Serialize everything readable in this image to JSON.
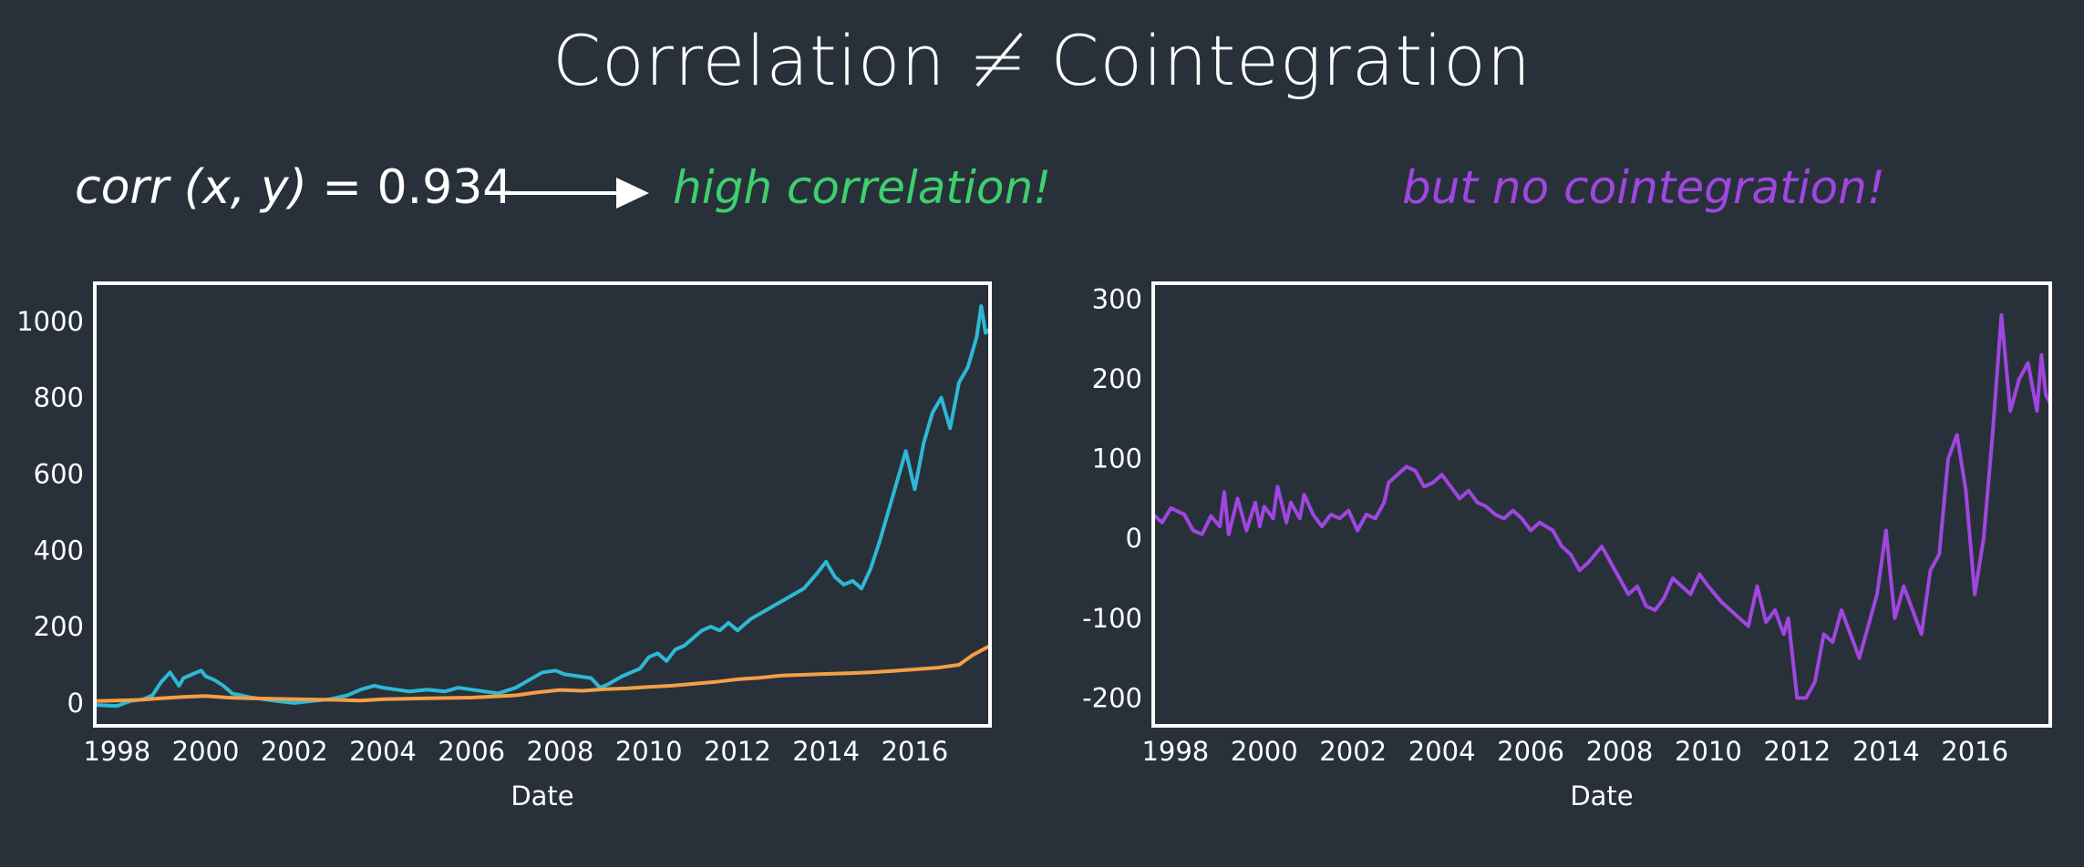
{
  "title": "Correlation ≠ Cointegration",
  "formula": {
    "lhs_func": "corr",
    "lhs_args": "(x, y)",
    "equals_value": "= 0.934"
  },
  "left_caption": "high correlation!",
  "right_caption": "but no cointegration!",
  "colors": {
    "background": "#28313a",
    "green": "#3ecf6e",
    "purple": "#a046e0",
    "cyan": "#2fb8d6",
    "orange": "#f2a046",
    "frame": "#ffffff"
  },
  "chart_data": [
    {
      "type": "line",
      "title": "",
      "xlabel": "Date",
      "ylabel": "",
      "xlim": [
        1997.5,
        2017.7
      ],
      "ylim": [
        -60,
        1100
      ],
      "x_ticks": [
        1998,
        2000,
        2002,
        2004,
        2006,
        2008,
        2010,
        2012,
        2014,
        2016
      ],
      "x_tick_labels": [
        "1998",
        "2000",
        "2002",
        "2004",
        "2006",
        "2008",
        "2010",
        "2012",
        "2014",
        "2016"
      ],
      "y_ticks": [
        0,
        200,
        400,
        600,
        800,
        1000
      ],
      "y_tick_labels": [
        "0",
        "200",
        "400",
        "600",
        "800",
        "1000"
      ],
      "grid": false,
      "series": [
        {
          "color": "#2fb8d6",
          "x": [
            1997.5,
            1998.0,
            1998.3,
            1998.6,
            1998.8,
            1999.0,
            1999.2,
            1999.4,
            1999.5,
            1999.7,
            1999.9,
            2000.0,
            2000.2,
            2000.4,
            2000.6,
            2000.8,
            2001.0,
            2001.3,
            2001.6,
            2002.0,
            2002.4,
            2002.8,
            2003.2,
            2003.5,
            2003.8,
            2004.0,
            2004.3,
            2004.6,
            2005.0,
            2005.4,
            2005.7,
            2006.0,
            2006.3,
            2006.6,
            2007.0,
            2007.3,
            2007.6,
            2007.9,
            2008.1,
            2008.4,
            2008.7,
            2008.9,
            2009.1,
            2009.4,
            2009.8,
            2010.0,
            2010.2,
            2010.4,
            2010.6,
            2010.8,
            2011.0,
            2011.2,
            2011.4,
            2011.6,
            2011.8,
            2012.0,
            2012.3,
            2012.6,
            2012.9,
            2013.2,
            2013.5,
            2013.8,
            2014.0,
            2014.2,
            2014.4,
            2014.6,
            2014.8,
            2015.0,
            2015.2,
            2015.4,
            2015.6,
            2015.8,
            2016.0,
            2016.2,
            2016.4,
            2016.6,
            2016.8,
            2017.0,
            2017.2,
            2017.4,
            2017.5,
            2017.6,
            2017.7
          ],
          "y": [
            -5,
            -8,
            5,
            10,
            20,
            55,
            80,
            45,
            65,
            75,
            85,
            70,
            60,
            45,
            25,
            20,
            15,
            10,
            5,
            0,
            5,
            10,
            20,
            35,
            45,
            40,
            35,
            30,
            35,
            30,
            40,
            35,
            30,
            25,
            40,
            60,
            80,
            85,
            75,
            70,
            65,
            40,
            50,
            70,
            90,
            120,
            130,
            110,
            140,
            150,
            170,
            190,
            200,
            190,
            210,
            190,
            220,
            240,
            260,
            280,
            300,
            340,
            370,
            330,
            310,
            320,
            300,
            350,
            420,
            500,
            580,
            660,
            560,
            680,
            760,
            800,
            720,
            840,
            880,
            960,
            1040,
            970,
            980
          ]
        },
        {
          "color": "#f2a046",
          "x": [
            1997.5,
            1998.0,
            1998.5,
            1999.0,
            1999.5,
            2000.0,
            2000.5,
            2001.0,
            2002.0,
            2003.0,
            2003.5,
            2004.0,
            2005.0,
            2006.0,
            2007.0,
            2007.5,
            2008.0,
            2008.5,
            2009.0,
            2009.5,
            2010.0,
            2010.5,
            2011.0,
            2011.5,
            2012.0,
            2012.5,
            2013.0,
            2013.5,
            2014.0,
            2014.5,
            2015.0,
            2015.5,
            2016.0,
            2016.5,
            2017.0,
            2017.3,
            2017.7
          ],
          "y": [
            5,
            6,
            8,
            12,
            16,
            18,
            14,
            12,
            10,
            8,
            6,
            10,
            12,
            14,
            20,
            28,
            34,
            32,
            36,
            38,
            42,
            45,
            50,
            55,
            62,
            66,
            72,
            74,
            76,
            78,
            80,
            84,
            88,
            92,
            100,
            125,
            150
          ]
        }
      ]
    },
    {
      "type": "line",
      "title": "",
      "xlabel": "Date",
      "ylabel": "",
      "xlim": [
        1997.5,
        2017.7
      ],
      "ylim": [
        -235,
        320
      ],
      "x_ticks": [
        1998,
        2000,
        2002,
        2004,
        2006,
        2008,
        2010,
        2012,
        2014,
        2016
      ],
      "x_tick_labels": [
        "1998",
        "2000",
        "2002",
        "2004",
        "2006",
        "2008",
        "2010",
        "2012",
        "2014",
        "2016"
      ],
      "y_ticks": [
        -200,
        -100,
        0,
        100,
        200,
        300
      ],
      "y_tick_labels": [
        "-200",
        "-100",
        "0",
        "100",
        "200",
        "300"
      ],
      "grid": false,
      "series": [
        {
          "color": "#a046e0",
          "x": [
            1997.5,
            1997.7,
            1997.9,
            1998.2,
            1998.4,
            1998.6,
            1998.8,
            1999.0,
            1999.1,
            1999.2,
            1999.4,
            1999.5,
            1999.6,
            1999.8,
            1999.9,
            2000.0,
            2000.2,
            2000.3,
            2000.5,
            2000.6,
            2000.8,
            2000.9,
            2001.1,
            2001.3,
            2001.5,
            2001.7,
            2001.9,
            2002.1,
            2002.3,
            2002.5,
            2002.7,
            2002.8,
            2003.0,
            2003.2,
            2003.4,
            2003.6,
            2003.8,
            2004.0,
            2004.2,
            2004.4,
            2004.6,
            2004.8,
            2005.0,
            2005.2,
            2005.4,
            2005.6,
            2005.8,
            2006.0,
            2006.2,
            2006.5,
            2006.7,
            2006.9,
            2007.1,
            2007.3,
            2007.6,
            2007.8,
            2008.0,
            2008.2,
            2008.4,
            2008.6,
            2008.8,
            2009.0,
            2009.2,
            2009.4,
            2009.6,
            2009.8,
            2010.0,
            2010.3,
            2010.5,
            2010.7,
            2010.9,
            2011.1,
            2011.3,
            2011.5,
            2011.7,
            2011.8,
            2012.0,
            2012.2,
            2012.4,
            2012.6,
            2012.8,
            2013.0,
            2013.2,
            2013.4,
            2013.6,
            2013.8,
            2014.0,
            2014.2,
            2014.4,
            2014.6,
            2014.8,
            2015.0,
            2015.2,
            2015.4,
            2015.6,
            2015.8,
            2016.0,
            2016.2,
            2016.4,
            2016.6,
            2016.8,
            2017.0,
            2017.2,
            2017.4,
            2017.5,
            2017.6,
            2017.7
          ],
          "y": [
            30,
            20,
            38,
            30,
            10,
            5,
            28,
            15,
            58,
            5,
            50,
            30,
            10,
            45,
            15,
            40,
            25,
            65,
            20,
            45,
            25,
            55,
            30,
            15,
            30,
            25,
            35,
            10,
            30,
            25,
            45,
            70,
            80,
            90,
            85,
            65,
            70,
            80,
            65,
            50,
            60,
            45,
            40,
            30,
            25,
            35,
            25,
            10,
            20,
            10,
            -10,
            -20,
            -40,
            -30,
            -10,
            -30,
            -50,
            -70,
            -60,
            -85,
            -90,
            -75,
            -50,
            -60,
            -70,
            -45,
            -60,
            -80,
            -90,
            -100,
            -110,
            -60,
            -105,
            -90,
            -120,
            -100,
            -200,
            -200,
            -180,
            -120,
            -130,
            -90,
            -120,
            -150,
            -110,
            -70,
            10,
            -100,
            -60,
            -90,
            -120,
            -40,
            -20,
            100,
            130,
            60,
            -70,
            0,
            130,
            280,
            160,
            200,
            220,
            160,
            230,
            180,
            170
          ]
        }
      ]
    }
  ]
}
